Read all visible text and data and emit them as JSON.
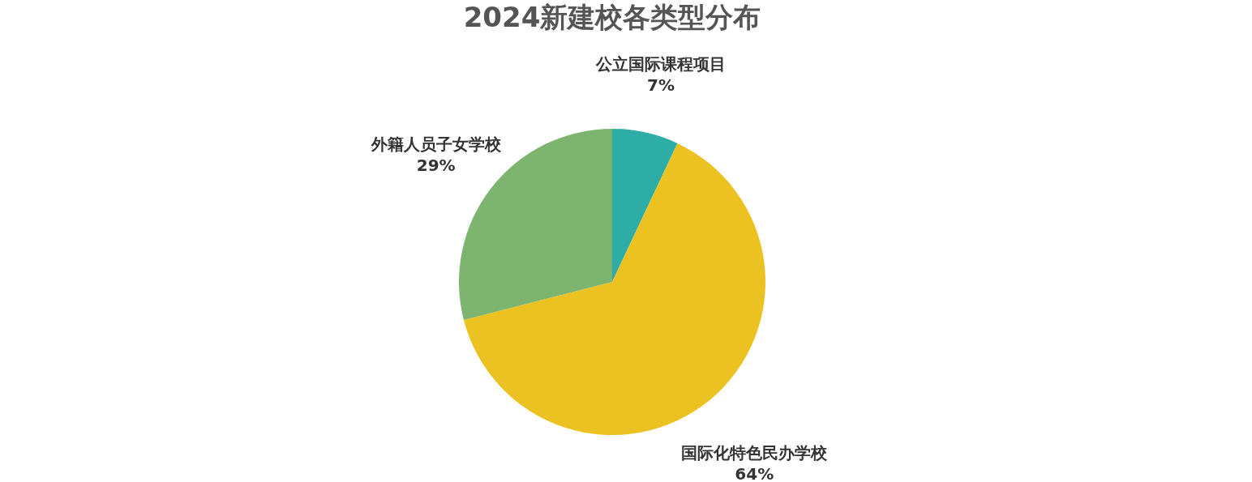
{
  "chart_data": {
    "type": "pie",
    "title": "2024新建校各类型分布",
    "categories": [
      "公立国际课程项目",
      "国际化特色民办学校",
      "外籍人员子女学校"
    ],
    "values": [
      7,
      64,
      29
    ],
    "value_labels": [
      "7%",
      "64%",
      "29%"
    ],
    "colors": [
      "#2eaca6",
      "#ecc122",
      "#7db570"
    ],
    "legend": false
  }
}
